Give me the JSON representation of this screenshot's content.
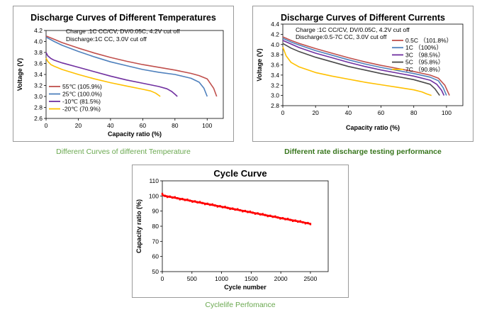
{
  "chart_data": [
    {
      "type": "line",
      "title": "Discharge Curves of Different Temperatures",
      "xlabel": "Capacity ratio (%)",
      "ylabel": "Voltage (V)",
      "xlim": [
        0,
        110
      ],
      "ylim": [
        2.6,
        4.2
      ],
      "xticks": [
        "0",
        "20",
        "40",
        "60",
        "80",
        "100"
      ],
      "yticks": [
        "2.6",
        "2.8",
        "3.0",
        "3.2",
        "3.4",
        "3.6",
        "3.8",
        "4.0",
        "4.2"
      ],
      "notes": [
        "Charge :1C CC/CV, DV/0.05C, 4.2V cut off",
        "Discharge:1C CC, 3.0V cut off"
      ],
      "legend_position": "bottom-left",
      "grid": false,
      "series": [
        {
          "name": "55℃ (105.9%)",
          "color": "#c0504d",
          "x": [
            0,
            5,
            10,
            20,
            30,
            40,
            50,
            60,
            70,
            80,
            90,
            95,
            100,
            104,
            105.9
          ],
          "y": [
            4.1,
            4.04,
            3.98,
            3.88,
            3.79,
            3.71,
            3.64,
            3.58,
            3.53,
            3.48,
            3.42,
            3.38,
            3.32,
            3.15,
            3.0
          ]
        },
        {
          "name": "25℃ (100.0%)",
          "color": "#4f81bd",
          "x": [
            0,
            5,
            10,
            20,
            30,
            40,
            50,
            60,
            70,
            80,
            90,
            95,
            98,
            100
          ],
          "y": [
            4.08,
            4.0,
            3.93,
            3.82,
            3.72,
            3.63,
            3.56,
            3.49,
            3.44,
            3.4,
            3.33,
            3.26,
            3.15,
            3.0
          ]
        },
        {
          "name": "-10℃ (81.5%)",
          "color": "#7030a0",
          "x": [
            0,
            1,
            3,
            5,
            10,
            20,
            30,
            40,
            50,
            60,
            70,
            75,
            78,
            80,
            81.5
          ],
          "y": [
            3.8,
            3.74,
            3.69,
            3.66,
            3.61,
            3.53,
            3.45,
            3.37,
            3.3,
            3.24,
            3.18,
            3.14,
            3.09,
            3.04,
            3.0
          ]
        },
        {
          "name": "-20℃ (70.9%)",
          "color": "#ffc000",
          "x": [
            0,
            1,
            3,
            5,
            10,
            20,
            30,
            40,
            50,
            60,
            65,
            68,
            70,
            70.9
          ],
          "y": [
            3.7,
            3.64,
            3.58,
            3.55,
            3.49,
            3.4,
            3.32,
            3.25,
            3.19,
            3.13,
            3.1,
            3.06,
            3.02,
            3.0
          ]
        }
      ]
    },
    {
      "type": "line",
      "title": "Discharge Curves of Different Currents",
      "xlabel": "Capacity ratio (%)",
      "ylabel": "Voltage (V)",
      "xlim": [
        0,
        110
      ],
      "ylim": [
        2.8,
        4.4
      ],
      "xticks": [
        "0",
        "20",
        "40",
        "60",
        "80",
        "100"
      ],
      "yticks": [
        "2.8",
        "3.0",
        "3.2",
        "3.4",
        "3.6",
        "3.8",
        "4.0",
        "4.2",
        "4.4"
      ],
      "notes": [
        "Charge :1C CC/CV, DV/0.05C, 4.2V cut off",
        "Discharge:0.5-7C CC, 3.0V cut off"
      ],
      "legend_position": "top-right",
      "grid": false,
      "series": [
        {
          "name": "0.5C  （101.8%）",
          "color": "#c0504d",
          "x": [
            0,
            5,
            10,
            20,
            30,
            40,
            50,
            60,
            70,
            80,
            90,
            95,
            99,
            101.8
          ],
          "y": [
            4.15,
            4.08,
            4.02,
            3.92,
            3.83,
            3.74,
            3.66,
            3.59,
            3.53,
            3.47,
            3.4,
            3.34,
            3.2,
            3.0
          ]
        },
        {
          "name": "1C  （100%）",
          "color": "#4f81bd",
          "x": [
            0,
            5,
            10,
            20,
            30,
            40,
            50,
            60,
            70,
            80,
            90,
            95,
            98,
            100
          ],
          "y": [
            4.12,
            4.05,
            3.99,
            3.88,
            3.79,
            3.7,
            3.62,
            3.55,
            3.49,
            3.43,
            3.36,
            3.29,
            3.15,
            3.0
          ]
        },
        {
          "name": "3C  （98.5%）",
          "color": "#7030a0",
          "x": [
            0,
            5,
            10,
            20,
            30,
            40,
            50,
            60,
            70,
            80,
            90,
            94,
            97,
            98.5
          ],
          "y": [
            4.08,
            4.01,
            3.94,
            3.83,
            3.74,
            3.65,
            3.57,
            3.5,
            3.44,
            3.38,
            3.3,
            3.22,
            3.1,
            3.0
          ]
        },
        {
          "name": "5C  （95.8%）",
          "color": "#4a4a4a",
          "x": [
            0,
            5,
            10,
            20,
            30,
            40,
            50,
            60,
            70,
            80,
            90,
            93,
            95.8
          ],
          "y": [
            4.02,
            3.93,
            3.86,
            3.75,
            3.66,
            3.57,
            3.5,
            3.43,
            3.37,
            3.31,
            3.22,
            3.13,
            3.0
          ]
        },
        {
          "name": "7C  （90.8%）",
          "color": "#ffc000",
          "x": [
            0,
            2,
            5,
            10,
            20,
            30,
            40,
            50,
            60,
            70,
            80,
            85,
            88,
            90.8
          ],
          "y": [
            3.95,
            3.78,
            3.65,
            3.56,
            3.45,
            3.38,
            3.32,
            3.26,
            3.21,
            3.16,
            3.11,
            3.07,
            3.03,
            3.0
          ]
        }
      ]
    },
    {
      "type": "line",
      "title": "Cycle Curve",
      "xlabel": "Cycle number",
      "ylabel": "Capacity ratio (%)",
      "xlim": [
        0,
        2800
      ],
      "ylim": [
        50,
        110
      ],
      "xticks": [
        "0",
        "500",
        "1000",
        "1500",
        "2000",
        "2500"
      ],
      "yticks": [
        "50",
        "60",
        "70",
        "80",
        "90",
        "100",
        "110"
      ],
      "grid": false,
      "series": [
        {
          "name": "",
          "color": "#ff0000",
          "x": [
            0,
            10,
            20,
            50,
            100,
            200,
            400,
            600,
            800,
            1000,
            1200,
            1400,
            1600,
            1800,
            2000,
            2200,
            2400,
            2500
          ],
          "y": [
            101,
            100.6,
            100.3,
            100,
            99.6,
            98.9,
            97.4,
            95.9,
            94.4,
            92.9,
            91.4,
            89.9,
            88.4,
            86.9,
            85.4,
            83.9,
            82.4,
            81.6
          ]
        }
      ]
    }
  ],
  "captions": {
    "temperature": "Different Curves of  different Temperature",
    "rate": "Different rate discharge testing performance",
    "cycle": "Cyclelife Perfomance"
  },
  "colors": {
    "caption_green": "#6aa84f",
    "caption_bold_green": "#38761d",
    "panel_border": "#9a9a9a"
  }
}
